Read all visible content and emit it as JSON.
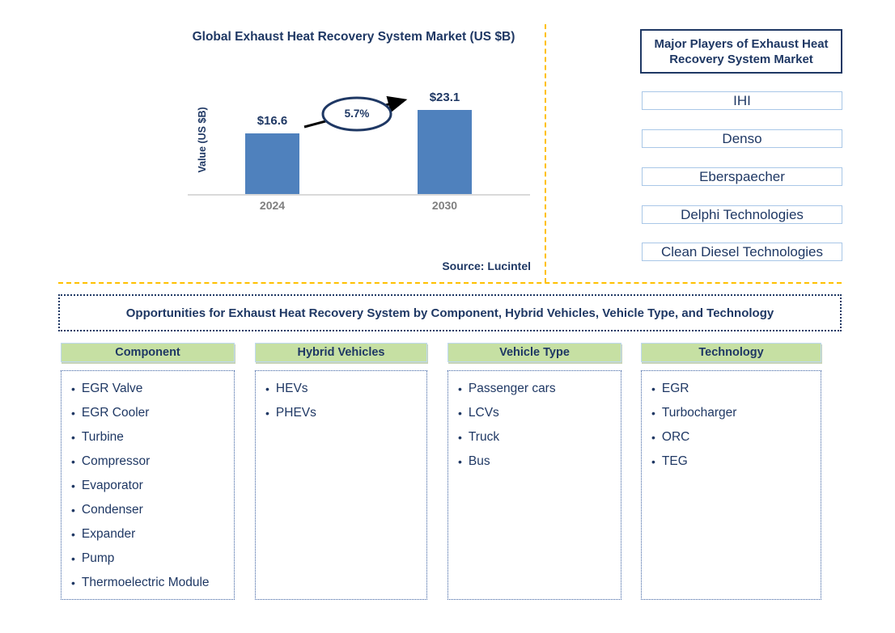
{
  "chart": {
    "title": "Global Exhaust Heat Recovery System Market (US $B)",
    "y_axis_label": "Value (US $B)",
    "growth_label": "5.7%",
    "source": "Source: Lucintel"
  },
  "chart_data": {
    "type": "bar",
    "title": "Global Exhaust Heat Recovery System Market (US $B)",
    "categories": [
      "2024",
      "2030"
    ],
    "values": [
      16.6,
      23.1
    ],
    "value_labels": [
      "$16.6",
      "$23.1"
    ],
    "xlabel": "",
    "ylabel": "Value (US $B)",
    "ylim": [
      0,
      25
    ],
    "grid": false,
    "legend": false,
    "annotation": "5.7% growth arrow between 2024 and 2030 bars",
    "bar_color": "#4F81BD"
  },
  "players": {
    "title": "Major Players of Exhaust Heat Recovery System Market",
    "items": [
      "IHI",
      "Denso",
      "Eberspaecher",
      "Delphi Technologies",
      "Clean Diesel Technologies"
    ]
  },
  "opportunities": {
    "title": "Opportunities for Exhaust Heat Recovery System by Component, Hybrid Vehicles, Vehicle Type, and Technology",
    "columns": [
      {
        "title": "Component",
        "items": [
          "EGR Valve",
          "EGR Cooler",
          "Turbine",
          "Compressor",
          "Evaporator",
          "Condenser",
          "Expander",
          "Pump",
          "Thermoelectric Module"
        ]
      },
      {
        "title": "Hybrid Vehicles",
        "items": [
          "HEVs",
          "PHEVs"
        ]
      },
      {
        "title": "Vehicle Type",
        "items": [
          "Passenger cars",
          "LCVs",
          "Truck",
          "Bus"
        ]
      },
      {
        "title": "Technology",
        "items": [
          "EGR",
          "Turbocharger",
          "ORC",
          "TEG"
        ]
      }
    ]
  },
  "colors": {
    "navy_text": "#1F3864",
    "bar_blue": "#4F81BD",
    "axis_gray": "#D9D9D9",
    "tick_gray": "#7F7F7F",
    "header_green": "#C6E0A3",
    "player_border_blue": "#A9C7E7",
    "divider_orange": "#FFC000"
  }
}
